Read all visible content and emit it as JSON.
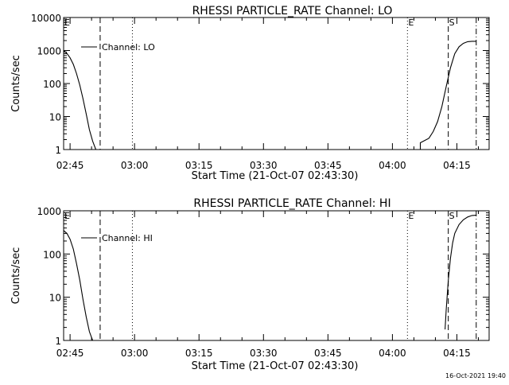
{
  "chart_data": [
    {
      "type": "line",
      "title": "RHESSI PARTICLE_RATE Channel: LO",
      "xlabel": "Start Time (21-Oct-07 02:43:30)",
      "ylabel": "Counts/sec",
      "y_scale": "log",
      "ylim": [
        1,
        10000
      ],
      "xlim": [
        "02:43:30",
        "04:22:30"
      ],
      "x_ticks": [
        "02:45",
        "03:00",
        "03:15",
        "03:30",
        "03:45",
        "04:00",
        "04:15"
      ],
      "y_ticks": [
        "1",
        "10",
        "100",
        "1000",
        "10000"
      ],
      "legend": {
        "label": "Channel: LO",
        "position": "top-left"
      },
      "grid": false,
      "markers": [
        {
          "label": "E",
          "time": "02:43:30",
          "style": "dash-dot"
        },
        {
          "label": "",
          "time": "02:52:00",
          "style": "dashed"
        },
        {
          "label": "",
          "time": "02:59:30",
          "style": "dotted"
        },
        {
          "label": "E",
          "time": "04:03:30",
          "style": "dotted"
        },
        {
          "label": "S",
          "time": "04:13:00",
          "style": "dashed"
        },
        {
          "label": "",
          "time": "04:19:30",
          "style": "dash-dot"
        }
      ],
      "series": [
        {
          "segments": [
            {
              "x": [
                "02:43:30",
                "02:44:15",
                "02:45:00",
                "02:45:45",
                "02:46:30",
                "02:47:15",
                "02:48:00",
                "02:48:45",
                "02:49:30",
                "02:50:15",
                "02:51:00"
              ],
              "y": [
                1000,
                820,
                600,
                380,
                200,
                90,
                35,
                12,
                4,
                1.8,
                1
              ]
            },
            {
              "x": [
                "04:05:00",
                "04:06:30",
                "04:06:30",
                "04:08:30",
                "04:09:30",
                "04:10:30",
                "04:11:30",
                "04:12:30",
                "04:13:30",
                "04:14:30",
                "04:15:30",
                "04:16:30",
                "04:17:30",
                "04:18:30",
                "04:19:30"
              ],
              "y": [
                1,
                1,
                1.6,
                2.2,
                3.5,
                7,
                20,
                80,
                300,
                800,
                1300,
                1650,
                1850,
                1900,
                1900
              ]
            }
          ]
        }
      ]
    },
    {
      "type": "line",
      "title": "RHESSI PARTICLE_RATE Channel: HI",
      "xlabel": "Start Time (21-Oct-07 02:43:30)",
      "ylabel": "Counts/sec",
      "y_scale": "log",
      "ylim": [
        1,
        1000
      ],
      "xlim": [
        "02:43:30",
        "04:22:30"
      ],
      "x_ticks": [
        "02:45",
        "03:00",
        "03:15",
        "03:30",
        "03:45",
        "04:00",
        "04:15"
      ],
      "y_ticks": [
        "1",
        "10",
        "100",
        "1000"
      ],
      "legend": {
        "label": "Channel: HI",
        "position": "top-left"
      },
      "grid": false,
      "markers": [
        {
          "label": "E",
          "time": "02:43:30",
          "style": "dash-dot"
        },
        {
          "label": "",
          "time": "02:52:00",
          "style": "dashed"
        },
        {
          "label": "",
          "time": "02:59:30",
          "style": "dotted"
        },
        {
          "label": "E",
          "time": "04:03:30",
          "style": "dotted"
        },
        {
          "label": "S",
          "time": "04:13:00",
          "style": "dashed"
        },
        {
          "label": "",
          "time": "04:19:30",
          "style": "dash-dot"
        }
      ],
      "series": [
        {
          "segments": [
            {
              "x": [
                "02:43:30",
                "02:44:15",
                "02:45:00",
                "02:45:45",
                "02:46:30",
                "02:47:15",
                "02:48:00",
                "02:48:45",
                "02:49:30",
                "02:50:15"
              ],
              "y": [
                350,
                300,
                220,
                130,
                60,
                25,
                9,
                3.5,
                1.6,
                1
              ]
            },
            {
              "x": [
                "04:12:15",
                "04:12:30",
                "04:13:00",
                "04:13:30",
                "04:14:00",
                "04:14:30",
                "04:15:30",
                "04:16:30",
                "04:17:30",
                "04:18:30",
                "04:19:30"
              ],
              "y": [
                1.8,
                5,
                25,
                80,
                180,
                300,
                480,
                620,
                720,
                780,
                790
              ]
            }
          ]
        }
      ]
    }
  ],
  "timestamp": "16-Oct-2021 19:40"
}
